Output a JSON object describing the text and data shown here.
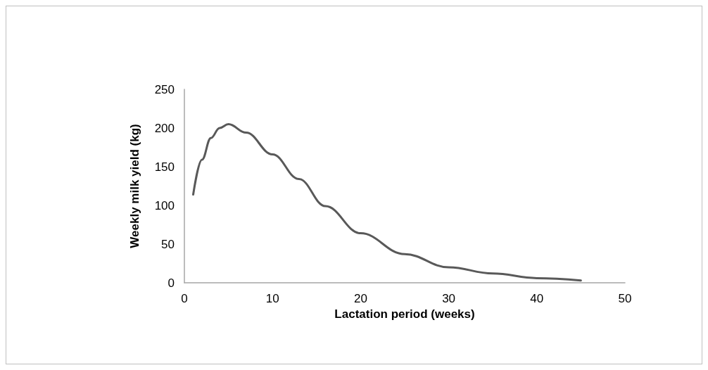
{
  "chart_data": {
    "type": "line",
    "xlabel": "Lactation period (weeks)",
    "ylabel": "Weekly milk yield (kg)",
    "x": [
      1,
      2,
      3,
      4,
      5,
      7,
      10,
      13,
      16,
      20,
      25,
      30,
      35,
      40,
      45
    ],
    "series": [
      {
        "color": "#595959",
        "values": [
          114,
          159,
          187,
          200,
          205,
          194,
          166,
          134,
          99,
          64,
          37,
          20,
          12,
          6,
          3
        ]
      }
    ],
    "xlim": [
      0,
      50
    ],
    "xticks": [
      0,
      10,
      20,
      30,
      40,
      50
    ],
    "ylim": [
      0,
      250
    ],
    "yticks": [
      0,
      50,
      100,
      150,
      200,
      250
    ],
    "grid": false,
    "marker": "none",
    "line_style": "solid"
  }
}
